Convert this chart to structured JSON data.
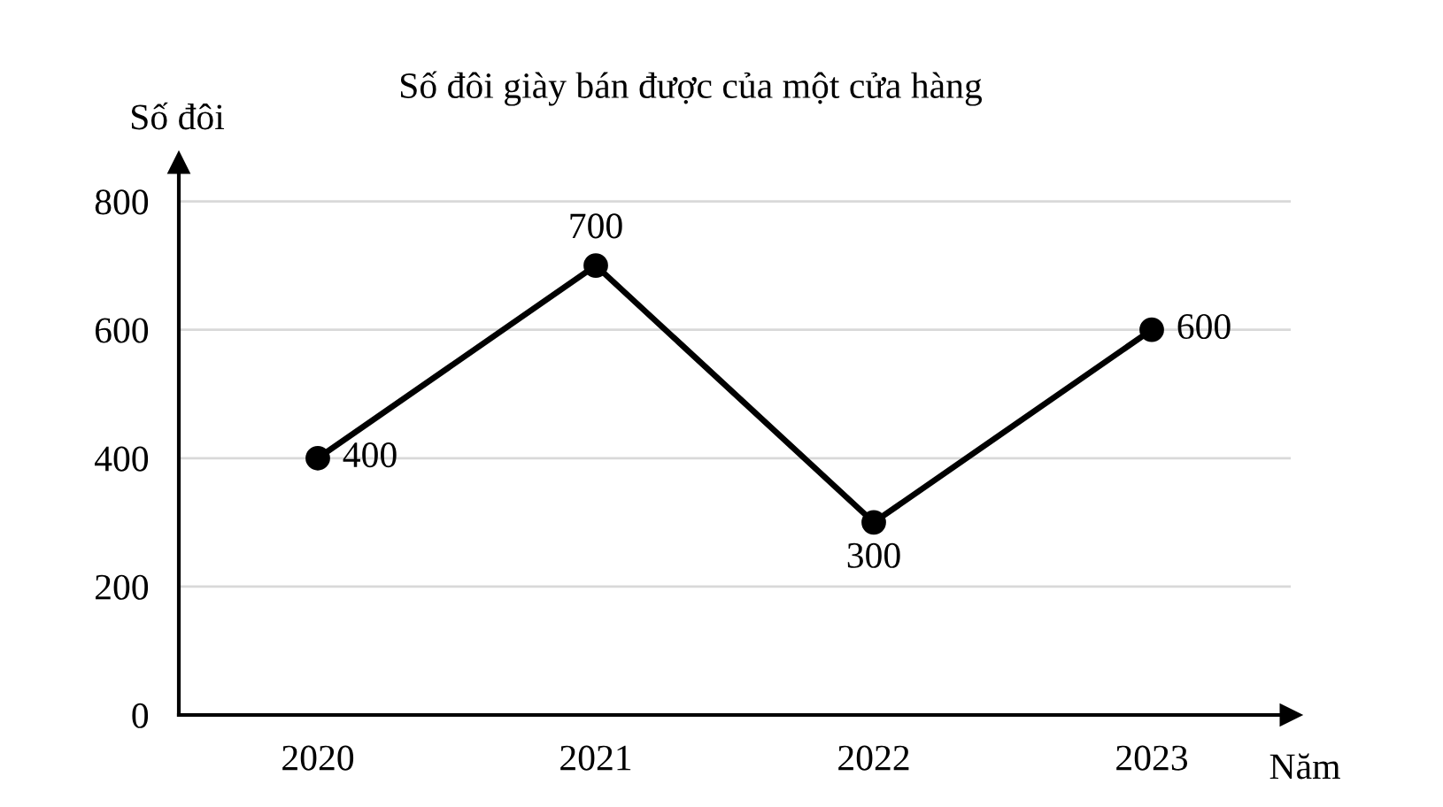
{
  "chart_data": {
    "type": "line",
    "title": "Số đôi giày bán được của một cửa hàng",
    "xlabel": "Năm",
    "ylabel": "Số đôi",
    "categories": [
      "2020",
      "2021",
      "2022",
      "2023"
    ],
    "series": [
      {
        "color": "#000000",
        "values": [
          400,
          700,
          300,
          600
        ]
      }
    ],
    "ylim": [
      0,
      860
    ],
    "yticks": [
      0,
      200,
      400,
      600,
      800
    ],
    "grid": "y",
    "marker": "circle",
    "line_style": "solid",
    "data_labels": true
  }
}
